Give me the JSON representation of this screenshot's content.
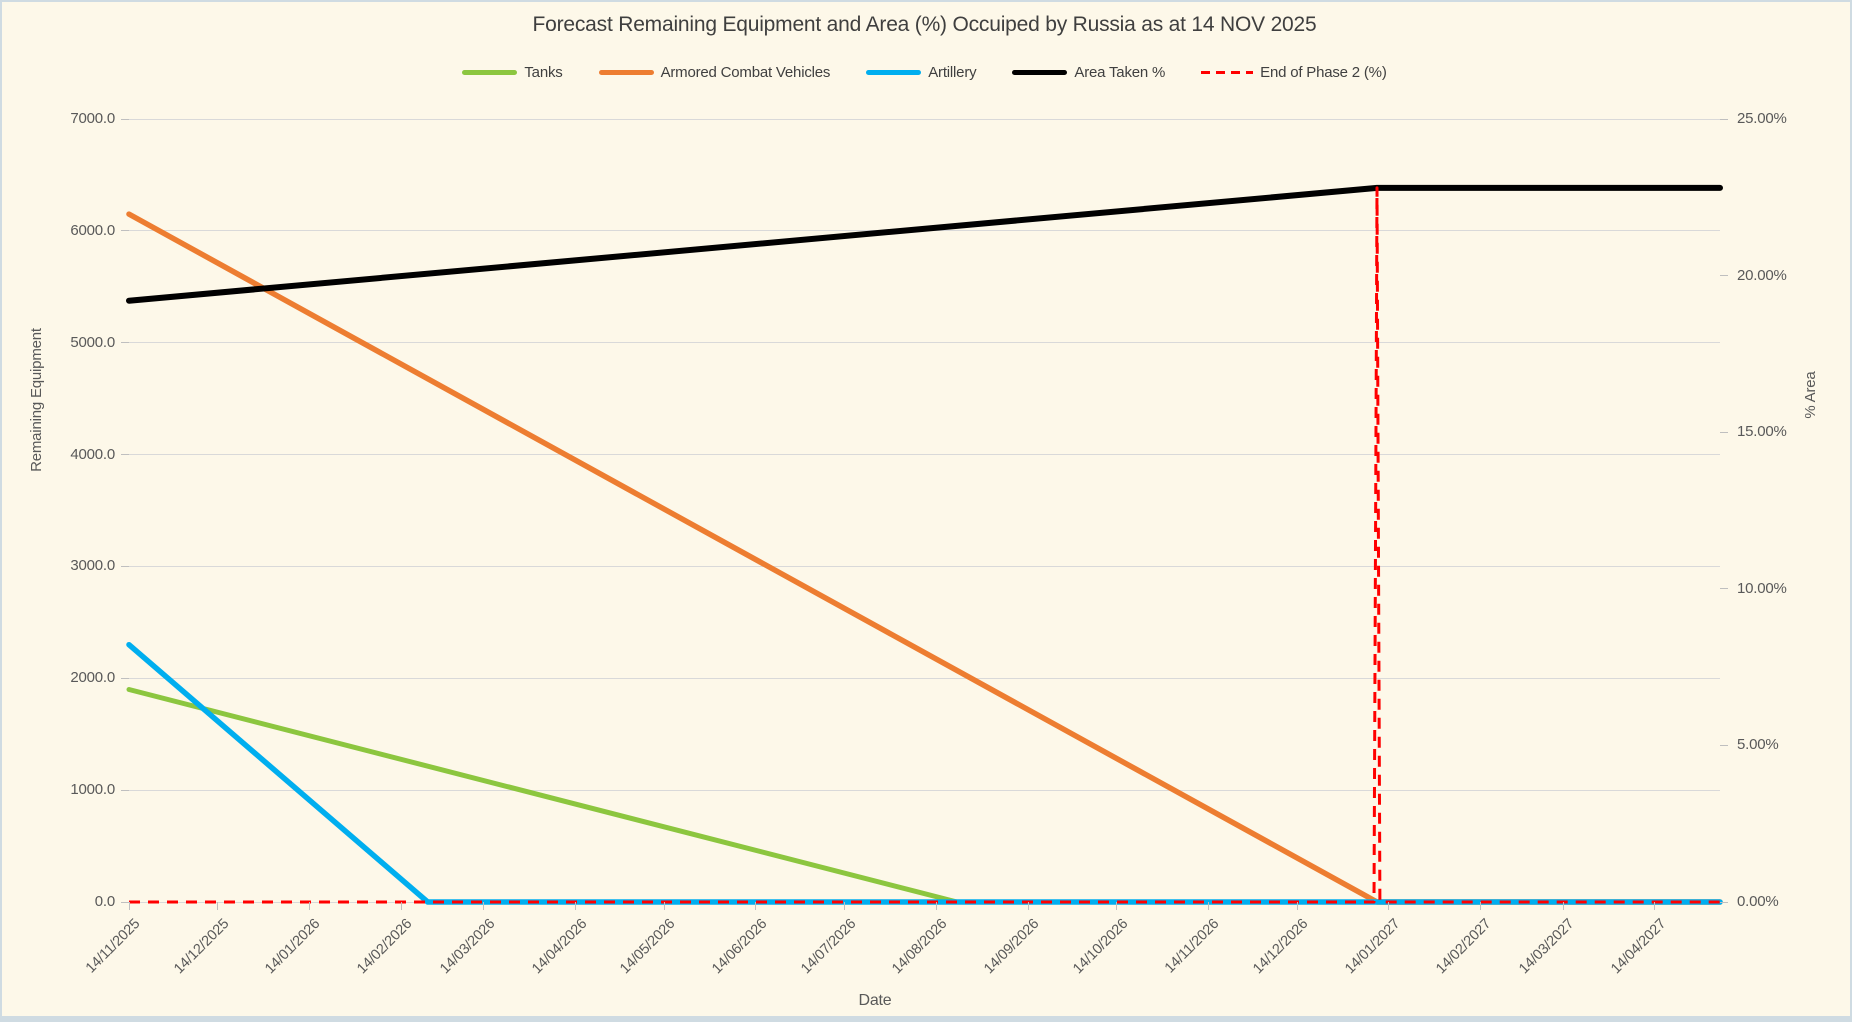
{
  "chart": {
    "title": "Forecast Remaining Equipment and Area (%) Occuiped by Russia as at 14 NOV 2025"
  },
  "chart_data": {
    "type": "line",
    "title": "Forecast Remaining Equipment and Area (%) Occuiped by Russia as at 14 NOV 2025",
    "x_axis": {
      "title": "Date",
      "type": "date",
      "start": "14/11/2025",
      "end": "06/05/2027",
      "tick_labels": [
        "14/11/2025",
        "14/12/2025",
        "14/01/2026",
        "14/02/2026",
        "14/03/2026",
        "14/04/2026",
        "14/05/2026",
        "14/06/2026",
        "14/07/2026",
        "14/08/2026",
        "14/09/2026",
        "14/10/2026",
        "14/11/2026",
        "14/12/2026",
        "14/01/2027",
        "14/02/2027",
        "14/03/2027",
        "14/04/2027"
      ]
    },
    "y_left": {
      "title": "Remaining Equipment",
      "min": 0,
      "max": 7000,
      "step": 1000,
      "tick_labels": [
        "0.0",
        "1000.0",
        "2000.0",
        "3000.0",
        "4000.0",
        "5000.0",
        "6000.0",
        "7000.0"
      ]
    },
    "y_right": {
      "title": "% Area",
      "min": 0,
      "max": 25,
      "step": 5,
      "tick_labels": [
        "0.00%",
        "5.00%",
        "10.00%",
        "15.00%",
        "20.00%",
        "25.00%"
      ]
    },
    "grid": "horizontal",
    "legend_position": "top",
    "series": [
      {
        "name": "Tanks",
        "color": "#8cc63f",
        "axis": "left",
        "width": 5,
        "dashed": false,
        "points": [
          [
            "14/11/2025",
            1900
          ],
          [
            "21/08/2026",
            0
          ],
          [
            "06/05/2027",
            0
          ]
        ]
      },
      {
        "name": "Armored Combat Vehicles",
        "color": "#ed7d31",
        "axis": "left",
        "width": 5.5,
        "dashed": false,
        "points": [
          [
            "14/11/2025",
            6150
          ],
          [
            "10/01/2027",
            0
          ],
          [
            "06/05/2027",
            0
          ]
        ]
      },
      {
        "name": "Artillery",
        "color": "#00aeef",
        "axis": "left",
        "width": 5.5,
        "dashed": false,
        "points": [
          [
            "14/11/2025",
            2300
          ],
          [
            "23/02/2026",
            0
          ],
          [
            "06/05/2027",
            0
          ]
        ]
      },
      {
        "name": "Area Taken %",
        "color": "#000000",
        "axis": "right",
        "width": 6,
        "dashed": false,
        "points": [
          [
            "14/11/2025",
            19.2
          ],
          [
            "10/01/2027",
            22.8
          ],
          [
            "06/05/2027",
            22.8
          ]
        ]
      },
      {
        "name": "End of Phase 2 (%)",
        "color": "#ff0000",
        "axis": "right",
        "width": 3,
        "dashed": true,
        "points": [
          [
            "14/11/2025",
            0
          ],
          [
            "09/01/2027",
            0
          ],
          [
            "10/01/2027",
            22.8
          ],
          [
            "11/01/2027",
            0
          ],
          [
            "06/05/2027",
            0
          ]
        ]
      }
    ],
    "annotations": {
      "end_of_phase_2_date": "10/01/2027",
      "area_taken_at_end_of_phase_2_pct": 22.8,
      "area_taken_start_pct": 19.2
    },
    "colors": {
      "background": "#fdf8e9",
      "gridline": "#d9d9d9",
      "tick_text": "#595959",
      "title_text": "#3f3f3f",
      "frame_border": "#cfdbe2"
    }
  }
}
